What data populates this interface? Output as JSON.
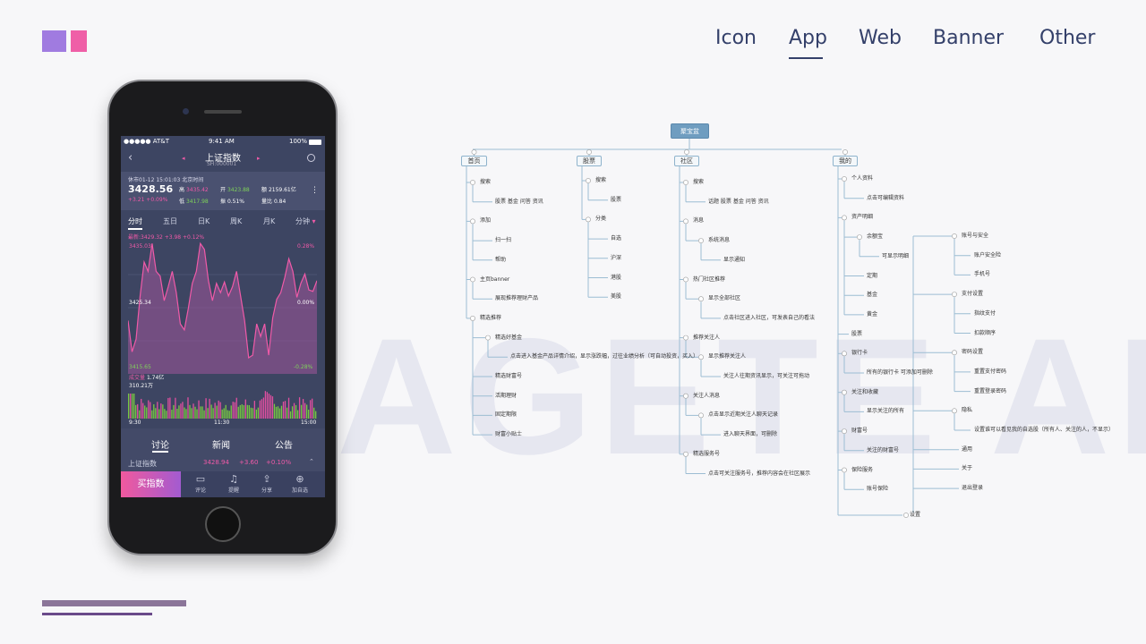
{
  "nav": {
    "items": [
      "Icon",
      "App",
      "Web",
      "Banner",
      "Other"
    ],
    "active": "App"
  },
  "colors": {
    "nav": "#34406a",
    "logo_purple": "#a07be0",
    "logo_pink": "#ef5fa7",
    "accent_pink": "#f05aa8",
    "up_green": "#7fd35a",
    "mindmap_line": "#9cbdd3"
  },
  "watermark": "AGETE APP",
  "phone": {
    "status": {
      "carrier": "●●●●● AT&T",
      "time": "9:41 AM",
      "battery": "100%"
    },
    "header": {
      "title": "上证指数",
      "code": "SH:000001"
    },
    "quote": {
      "status_line": "休市01-12 15:01:03 北京时间",
      "price": "3428.56",
      "change": "+3.21  +0.09%",
      "high_label": "高",
      "high": "3435.42",
      "open_label": "开",
      "open": "3423.88",
      "amount_label": "额",
      "amount": "2159.61亿",
      "low_label": "低",
      "low": "3417.98",
      "amp_label": "振",
      "amp": "0.51%",
      "ratio_label": "量比",
      "ratio": "0.84"
    },
    "period_tabs": [
      "分时",
      "五日",
      "日K",
      "周K",
      "月K",
      "分钟"
    ],
    "latest": "最新:3429.32 +3.98 +0.12%",
    "price_axis": {
      "top": "3435.03",
      "mid": "3425.34",
      "bottom": "3415.65",
      "top_pct": "0.28%",
      "mid_pct": "0.00%",
      "bottom_pct": "-0.28%"
    },
    "volume": {
      "label": "成交量",
      "value": "1.74亿",
      "max": "310.21万"
    },
    "time_axis": [
      "9:30",
      "11:30",
      "15:00"
    ],
    "price_series": [
      3423.4,
      3418.7,
      3420.6,
      3427.1,
      3432.2,
      3430.8,
      3435.0,
      3430.8,
      3430.1,
      3426.4,
      3428.5,
      3430.8,
      3427.6,
      3422.9,
      3422.0,
      3425.2,
      3429.0,
      3430.8,
      3435.0,
      3434.1,
      3429.4,
      3426.4,
      3429.0,
      3427.6,
      3429.2,
      3427.1,
      3428.5,
      3430.8,
      3427.1,
      3423.4,
      3417.8,
      3418.2,
      3422.9,
      3421.0,
      3422.9,
      3418.2,
      3423.8,
      3426.6,
      3427.6,
      3429.9,
      3432.7,
      3430.8,
      3426.9,
      3429.0,
      3430.4,
      3428.0,
      3427.8,
      3429.4
    ],
    "news_tabs": [
      "讨论",
      "新闻",
      "公告"
    ],
    "ticker": {
      "name": "上证指数",
      "price": "3428.94",
      "change": "+3.60",
      "pct": "+0.10%"
    },
    "buy_label": "买指数",
    "toolbar": [
      {
        "label": "评论",
        "icon": "comment-icon"
      },
      {
        "label": "提醒",
        "icon": "bell-icon"
      },
      {
        "label": "分享",
        "icon": "share-icon"
      },
      {
        "label": "加自选",
        "icon": "plus-circle-icon"
      }
    ]
  },
  "mindmap": {
    "root": "聚宝盆",
    "branches": [
      {
        "label": "首页",
        "children": [
          {
            "label": "搜索",
            "children": [
              {
                "label": "股票 基金 问答 资讯"
              }
            ]
          },
          {
            "label": "添加",
            "children": [
              {
                "label": "扫一扫"
              },
              {
                "label": "帮助"
              }
            ]
          },
          {
            "label": "主页banner",
            "children": [
              {
                "label": "展现推荐理财产品"
              }
            ]
          },
          {
            "label": "精选推荐",
            "children": [
              {
                "label": "精选好基金",
                "children": [
                  {
                    "label": "点击进入基金产品详情介绍，显示涨跌幅，过往业绩分析（可自动投资，买入）"
                  }
                ]
              },
              {
                "label": "精选财富号"
              },
              {
                "label": "活期理财"
              },
              {
                "label": "固定期限"
              },
              {
                "label": "财富小贴士"
              }
            ]
          }
        ]
      },
      {
        "label": "股票",
        "children": [
          {
            "label": "搜索",
            "children": [
              {
                "label": "股票"
              }
            ]
          },
          {
            "label": "分类",
            "children": [
              {
                "label": "自选"
              },
              {
                "label": "沪深"
              },
              {
                "label": "港股"
              },
              {
                "label": "美股"
              }
            ]
          }
        ]
      },
      {
        "label": "社区",
        "children": [
          {
            "label": "搜索",
            "children": [
              {
                "label": "话题 股票 基金 问答 资讯"
              }
            ]
          },
          {
            "label": "消息",
            "children": [
              {
                "label": "系统消息",
                "children": [
                  {
                    "label": "显示通知"
                  }
                ]
              }
            ]
          },
          {
            "label": "热门社区推荐",
            "children": [
              {
                "label": "显示全部社区",
                "children": [
                  {
                    "label": "点击社区进入社区，可发表自己的看法"
                  }
                ]
              }
            ]
          },
          {
            "label": "推荐关注人",
            "children": [
              {
                "label": "显示推荐关注人",
                "children": [
                  {
                    "label": "关注人往期资讯显示，可关注可拖动"
                  }
                ]
              }
            ]
          },
          {
            "label": "关注人消息",
            "children": [
              {
                "label": "点击显示近期关注人聊天记录",
                "children": [
                  {
                    "label": "进入聊天界面，可删除"
                  }
                ]
              }
            ]
          },
          {
            "label": "精选服务号",
            "children": [
              {
                "label": "点击可关注服务号，推荐内容会在社区展示"
              }
            ]
          }
        ]
      },
      {
        "label": "我的",
        "children": [
          {
            "label": "个人资料",
            "children": [
              {
                "label": "点击可编辑资料"
              }
            ]
          },
          {
            "label": "资产明细",
            "children": [
              {
                "label": "余额宝",
                "children": [
                  {
                    "label": "可显示明细"
                  }
                ]
              },
              {
                "label": "定期"
              },
              {
                "label": "基金"
              },
              {
                "label": "黄金"
              }
            ]
          },
          {
            "label": "股票"
          },
          {
            "label": "银行卡",
            "children": [
              {
                "label": "所有的银行卡 可添加可删除"
              }
            ]
          },
          {
            "label": "关注和收藏",
            "children": [
              {
                "label": "显示关注的所有"
              }
            ]
          },
          {
            "label": "财富号",
            "children": [
              {
                "label": "关注的财富号"
              }
            ]
          },
          {
            "label": "保险服务",
            "children": [
              {
                "label": "账号保险"
              }
            ]
          },
          {
            "label": "设置",
            "children": [
              {
                "label": "账号与安全",
                "children": [
                  {
                    "label": "账户安全险"
                  },
                  {
                    "label": "手机号"
                  }
                ]
              },
              {
                "label": "支付设置",
                "children": [
                  {
                    "label": "指纹支付"
                  },
                  {
                    "label": "扣款顺序"
                  }
                ]
              },
              {
                "label": "密码设置",
                "children": [
                  {
                    "label": "重置支付密码"
                  },
                  {
                    "label": "重置登录密码"
                  }
                ]
              },
              {
                "label": "隐私",
                "children": [
                  {
                    "label": "设置谁可以看见我的自选股（所有人、关注的人，不显示）"
                  }
                ]
              },
              {
                "label": "通用"
              },
              {
                "label": "关于"
              },
              {
                "label": "退出登录"
              }
            ]
          }
        ]
      }
    ]
  }
}
